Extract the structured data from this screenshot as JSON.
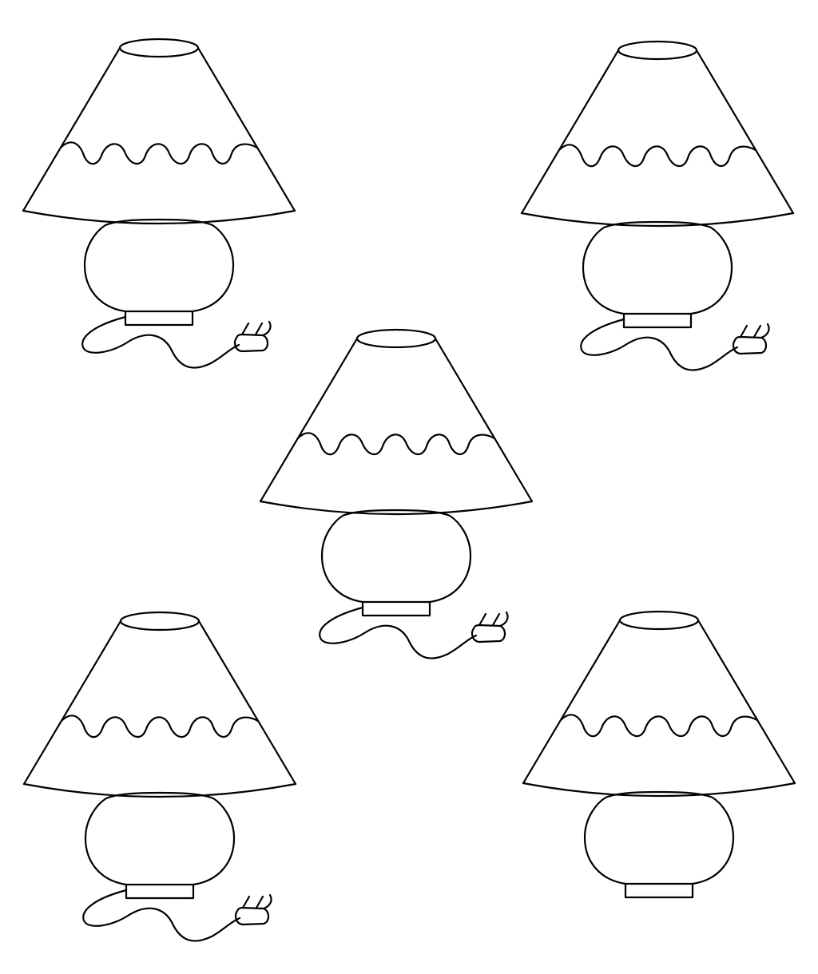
{
  "worksheet": {
    "lamps": [
      {
        "id": "top-left",
        "has_cord": true
      },
      {
        "id": "top-right",
        "has_cord": true
      },
      {
        "id": "center",
        "has_cord": true
      },
      {
        "id": "bottom-left",
        "has_cord": true
      },
      {
        "id": "bottom-right",
        "has_cord": false
      }
    ]
  },
  "colors": {
    "line": "#000000",
    "background": "#ffffff"
  }
}
